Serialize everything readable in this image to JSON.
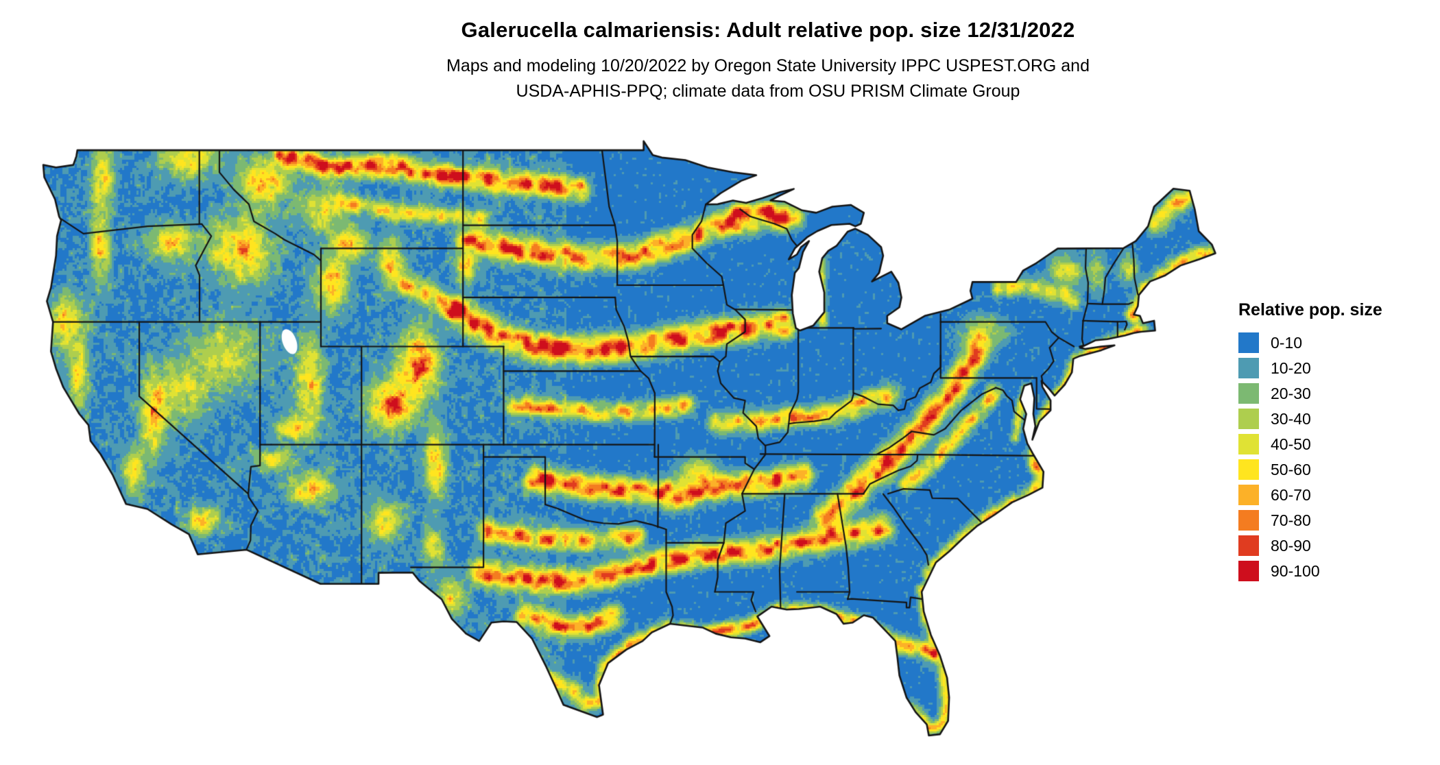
{
  "header": {
    "title": "Galerucella calmariensis: Adult relative pop. size 12/31/2022",
    "subtitle_line1": "Maps and modeling 10/20/2022 by Oregon State University IPPC USPEST.ORG and",
    "subtitle_line2": "USDA-APHIS-PPQ; climate data from OSU PRISM Climate Group"
  },
  "legend": {
    "title": "Relative pop. size",
    "classes": [
      {
        "label": "0-10",
        "color": "#2278C9"
      },
      {
        "label": "10-20",
        "color": "#4E9BB2"
      },
      {
        "label": "20-30",
        "color": "#7CB972"
      },
      {
        "label": "30-40",
        "color": "#AECE4E"
      },
      {
        "label": "40-50",
        "color": "#E0E234"
      },
      {
        "label": "50-60",
        "color": "#FFE51F"
      },
      {
        "label": "60-70",
        "color": "#FCB128"
      },
      {
        "label": "70-80",
        "color": "#F47C20"
      },
      {
        "label": "80-90",
        "color": "#E03C20"
      },
      {
        "label": "90-100",
        "color": "#CE0E1D"
      }
    ]
  },
  "map": {
    "background_color": "#FFFFFF",
    "boundary_color": "#141414"
  }
}
